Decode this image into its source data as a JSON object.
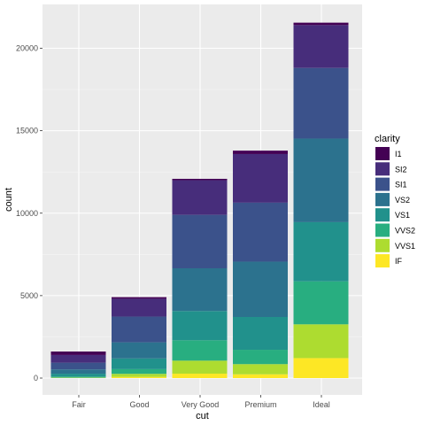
{
  "chart_data": {
    "type": "bar",
    "stacked": true,
    "xlabel": "cut",
    "ylabel": "count",
    "categories": [
      "Fair",
      "Good",
      "Very Good",
      "Premium",
      "Ideal"
    ],
    "ylim": [
      0,
      22700
    ],
    "yticks": [
      0,
      5000,
      10000,
      15000,
      20000
    ],
    "ytick_labels": [
      "0",
      "5000",
      "10000",
      "15000",
      "20000"
    ],
    "grid": true,
    "legend": {
      "title": "clarity",
      "position": "right"
    },
    "series": [
      {
        "name": "I1",
        "color": "#440154",
        "values": [
          210,
          96,
          84,
          205,
          146
        ]
      },
      {
        "name": "SI2",
        "color": "#472d7b",
        "values": [
          466,
          1081,
          2100,
          2949,
          2598
        ]
      },
      {
        "name": "SI1",
        "color": "#3b528b",
        "values": [
          408,
          1560,
          3240,
          3575,
          4282
        ]
      },
      {
        "name": "VS2",
        "color": "#2c728e",
        "values": [
          261,
          978,
          2591,
          3357,
          5071
        ]
      },
      {
        "name": "VS1",
        "color": "#21918c",
        "values": [
          170,
          648,
          1775,
          1989,
          3589
        ]
      },
      {
        "name": "VVS2",
        "color": "#28ae80",
        "values": [
          69,
          286,
          1235,
          870,
          2606
        ]
      },
      {
        "name": "VVS1",
        "color": "#addc30",
        "values": [
          17,
          186,
          789,
          616,
          2047
        ]
      },
      {
        "name": "IF",
        "color": "#fde725",
        "values": [
          9,
          71,
          268,
          230,
          1212
        ]
      }
    ],
    "colors": {
      "panel_background": "#ebebeb",
      "grid_major": "#ffffff",
      "grid_minor": "#f5f5f5"
    }
  }
}
